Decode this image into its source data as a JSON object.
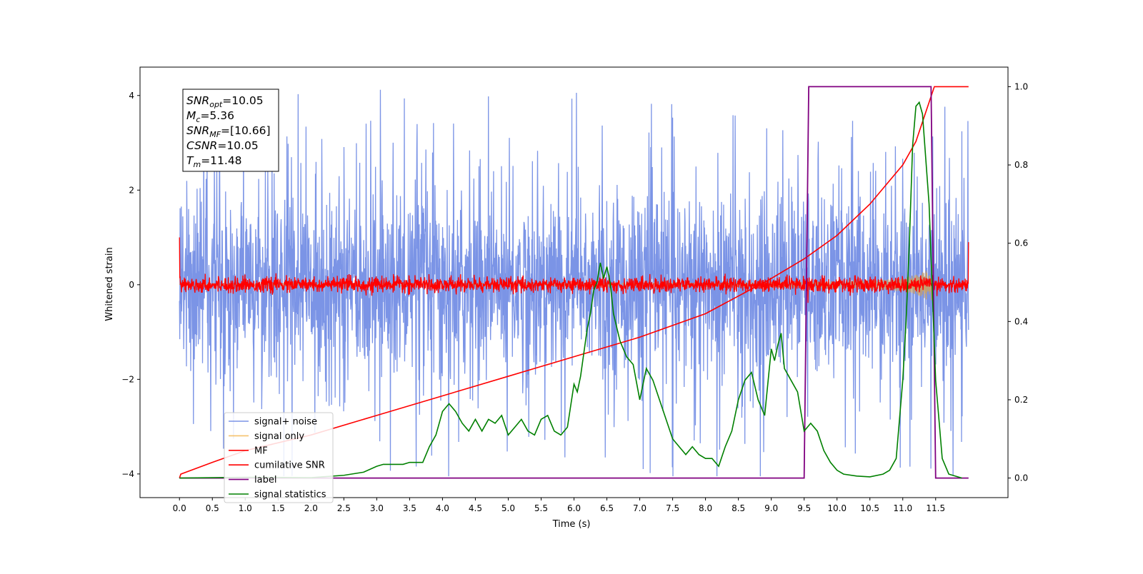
{
  "chart_data": {
    "type": "line",
    "xlabel": "Time (s)",
    "ylabel": "Whitened strain",
    "xlim": [
      -0.6,
      12.6
    ],
    "ylim": [
      -4.5,
      4.6
    ],
    "y2lim": [
      -0.05,
      1.05
    ],
    "x_ticks": [
      "0.0",
      "0.5",
      "1.0",
      "1.5",
      "2.0",
      "2.5",
      "3.0",
      "3.5",
      "4.0",
      "4.5",
      "5.0",
      "5.5",
      "6.0",
      "6.5",
      "7.0",
      "7.5",
      "8.0",
      "8.5",
      "9.0",
      "9.5",
      "10.0",
      "10.5",
      "11.0",
      "11.5"
    ],
    "y_ticks": [
      4,
      2,
      0,
      -2,
      -4
    ],
    "y_tick_labels": [
      "4",
      "2",
      "0",
      "−2",
      "−4"
    ],
    "y2_ticks": [
      "0.0",
      "0.2",
      "0.4",
      "0.6",
      "0.8",
      "1.0"
    ],
    "grid": false,
    "legend_position": "lower-left",
    "annotation": [
      {
        "sym": "SNR",
        "sub": "opt",
        "val": "=10.05"
      },
      {
        "sym": "M",
        "sub": "c",
        "val": "=5.36"
      },
      {
        "sym": "SNR",
        "sub": "MF",
        "val": "=[10.66]"
      },
      {
        "sym": "CSNR",
        "sub": "",
        "val": "=10.05"
      },
      {
        "sym": "T",
        "sub": "m",
        "val": "=11.48"
      }
    ],
    "series": [
      {
        "name": "signal+ noise",
        "color": "#7b94e6",
        "axis": "left",
        "kind": "noise",
        "sigma": 1.0,
        "spike_max": 4.15
      },
      {
        "name": "signal only",
        "color": "#f5c16c",
        "axis": "left",
        "kind": "chirp",
        "amp_start": 0.02,
        "amp_end": 0.5,
        "t_merge": 11.48
      },
      {
        "name": "MF",
        "color": "#ff0000",
        "axis": "left",
        "kind": "mf_noise",
        "sigma": 0.08
      },
      {
        "name": "cumilative SNR",
        "color": "#ff0000",
        "axis": "right",
        "x": [
          0,
          0.02,
          0.5,
          1,
          2,
          3,
          4,
          5,
          6,
          7,
          8,
          9,
          9.5,
          10,
          10.5,
          11,
          11.2,
          11.48,
          12.0
        ],
        "values": [
          0.0,
          0.01,
          0.04,
          0.07,
          0.11,
          0.16,
          0.21,
          0.26,
          0.31,
          0.36,
          0.42,
          0.51,
          0.56,
          0.62,
          0.7,
          0.8,
          0.86,
          1.0,
          1.0
        ]
      },
      {
        "name": "label",
        "color": "#800080",
        "axis": "right",
        "x": [
          0,
          9.5,
          9.57,
          11.43,
          11.5,
          12.0
        ],
        "values": [
          0,
          0,
          1,
          1,
          0,
          0
        ]
      },
      {
        "name": "signal statistics",
        "color": "#008000",
        "axis": "right",
        "x": [
          0,
          1,
          2,
          2.5,
          2.8,
          3.0,
          3.1,
          3.2,
          3.4,
          3.5,
          3.7,
          3.8,
          3.9,
          4.0,
          4.05,
          4.1,
          4.2,
          4.3,
          4.4,
          4.5,
          4.6,
          4.7,
          4.8,
          4.9,
          5.0,
          5.1,
          5.2,
          5.3,
          5.4,
          5.5,
          5.6,
          5.7,
          5.8,
          5.9,
          6.0,
          6.05,
          6.1,
          6.2,
          6.25,
          6.3,
          6.35,
          6.4,
          6.45,
          6.5,
          6.55,
          6.6,
          6.7,
          6.8,
          6.9,
          7.0,
          7.1,
          7.2,
          7.3,
          7.4,
          7.5,
          7.6,
          7.7,
          7.8,
          7.9,
          8.0,
          8.1,
          8.2,
          8.3,
          8.4,
          8.5,
          8.6,
          8.7,
          8.8,
          8.9,
          9.0,
          9.05,
          9.1,
          9.15,
          9.2,
          9.3,
          9.4,
          9.5,
          9.6,
          9.7,
          9.8,
          9.9,
          10.0,
          10.1,
          10.3,
          10.5,
          10.7,
          10.8,
          10.9,
          11.0,
          11.05,
          11.1,
          11.15,
          11.2,
          11.25,
          11.3,
          11.4,
          11.5,
          11.6,
          11.7,
          11.9
        ],
        "values": [
          0.0,
          0.002,
          0.001,
          0.007,
          0.015,
          0.03,
          0.035,
          0.035,
          0.035,
          0.04,
          0.04,
          0.08,
          0.11,
          0.17,
          0.18,
          0.19,
          0.17,
          0.14,
          0.12,
          0.15,
          0.12,
          0.15,
          0.14,
          0.16,
          0.11,
          0.13,
          0.15,
          0.12,
          0.11,
          0.15,
          0.16,
          0.12,
          0.11,
          0.13,
          0.24,
          0.22,
          0.26,
          0.38,
          0.42,
          0.48,
          0.5,
          0.55,
          0.51,
          0.54,
          0.5,
          0.42,
          0.35,
          0.31,
          0.29,
          0.2,
          0.28,
          0.25,
          0.2,
          0.15,
          0.1,
          0.08,
          0.06,
          0.08,
          0.06,
          0.05,
          0.05,
          0.03,
          0.08,
          0.12,
          0.2,
          0.25,
          0.27,
          0.2,
          0.16,
          0.33,
          0.3,
          0.34,
          0.37,
          0.28,
          0.25,
          0.22,
          0.12,
          0.14,
          0.12,
          0.07,
          0.04,
          0.02,
          0.01,
          0.005,
          0.003,
          0.01,
          0.02,
          0.05,
          0.25,
          0.4,
          0.6,
          0.85,
          0.95,
          0.96,
          0.93,
          0.7,
          0.25,
          0.05,
          0.01,
          0.0
        ]
      }
    ]
  }
}
